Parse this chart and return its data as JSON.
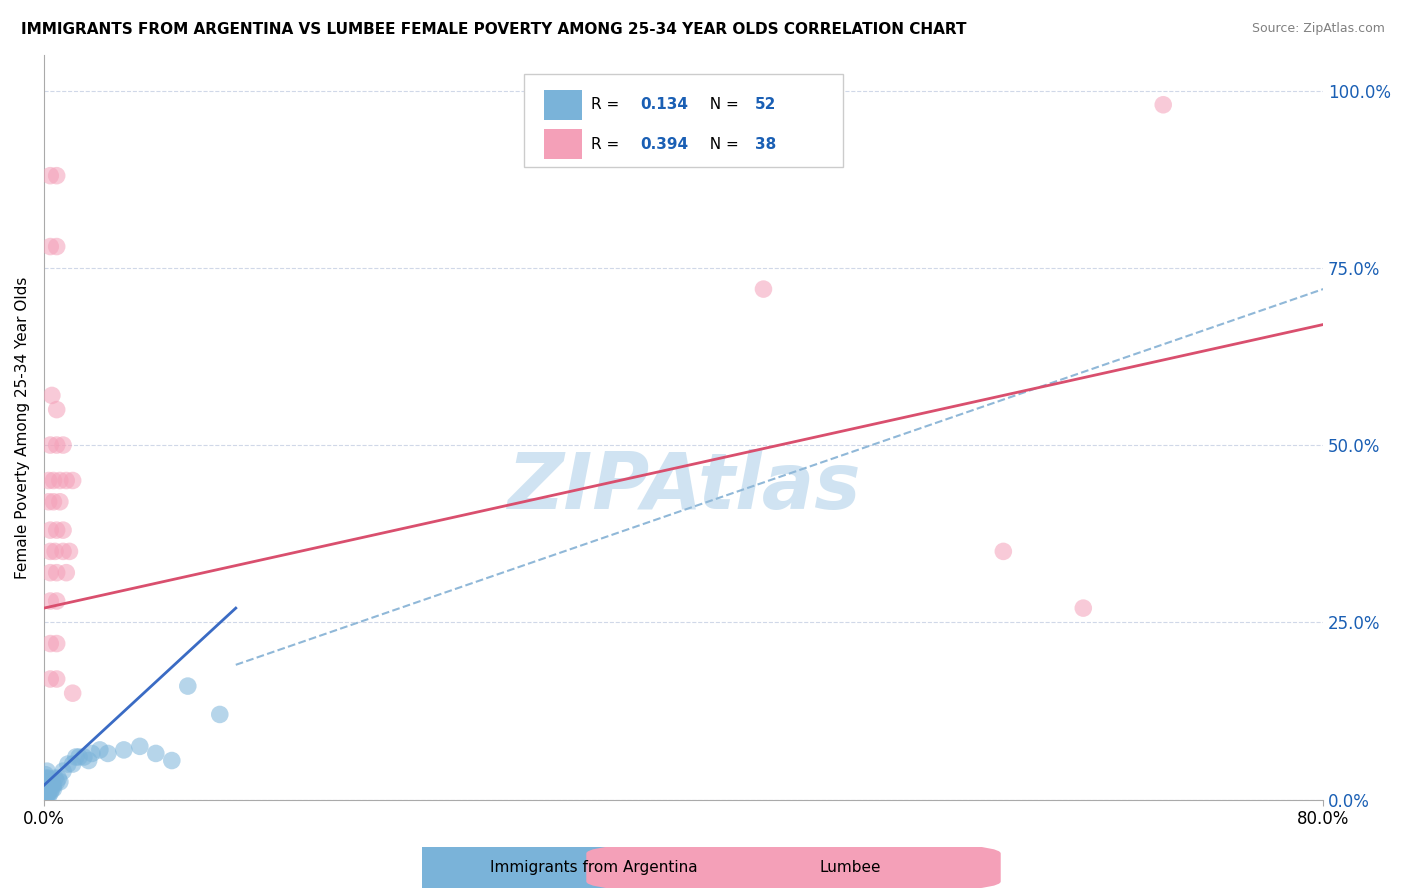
{
  "title": "IMMIGRANTS FROM ARGENTINA VS LUMBEE FEMALE POVERTY AMONG 25-34 YEAR OLDS CORRELATION CHART",
  "source": "Source: ZipAtlas.com",
  "ylabel": "Female Poverty Among 25-34 Year Olds",
  "ytick_labels": [
    "0.0%",
    "25.0%",
    "50.0%",
    "75.0%",
    "100.0%"
  ],
  "ytick_values": [
    0.0,
    0.25,
    0.5,
    0.75,
    1.0
  ],
  "xlim": [
    0.0,
    0.8
  ],
  "ylim": [
    0.0,
    1.05
  ],
  "legend_R_color": "#1a5fb4",
  "series1_R": "0.134",
  "series1_N": "52",
  "series2_R": "0.394",
  "series2_N": "38",
  "blue_color": "#7ab3d9",
  "pink_color": "#f4a0b8",
  "blue_line_color": "#3a6bc4",
  "pink_line_color": "#d94f6e",
  "dashed_line_color": "#90b8d8",
  "grid_color": "#d0d8e8",
  "watermark_color": "#c8dff0",
  "blue_scatter": [
    [
      0.001,
      0.005
    ],
    [
      0.001,
      0.008
    ],
    [
      0.001,
      0.01
    ],
    [
      0.001,
      0.012
    ],
    [
      0.001,
      0.015
    ],
    [
      0.001,
      0.018
    ],
    [
      0.001,
      0.02
    ],
    [
      0.001,
      0.025
    ],
    [
      0.001,
      0.03
    ],
    [
      0.001,
      0.035
    ],
    [
      0.002,
      0.005
    ],
    [
      0.002,
      0.008
    ],
    [
      0.002,
      0.01
    ],
    [
      0.002,
      0.015
    ],
    [
      0.002,
      0.02
    ],
    [
      0.002,
      0.025
    ],
    [
      0.002,
      0.03
    ],
    [
      0.002,
      0.04
    ],
    [
      0.003,
      0.005
    ],
    [
      0.003,
      0.01
    ],
    [
      0.003,
      0.015
    ],
    [
      0.003,
      0.02
    ],
    [
      0.003,
      0.025
    ],
    [
      0.003,
      0.03
    ],
    [
      0.004,
      0.01
    ],
    [
      0.004,
      0.02
    ],
    [
      0.004,
      0.025
    ],
    [
      0.005,
      0.015
    ],
    [
      0.005,
      0.02
    ],
    [
      0.005,
      0.025
    ],
    [
      0.006,
      0.015
    ],
    [
      0.006,
      0.02
    ],
    [
      0.007,
      0.03
    ],
    [
      0.008,
      0.025
    ],
    [
      0.009,
      0.03
    ],
    [
      0.01,
      0.025
    ],
    [
      0.012,
      0.04
    ],
    [
      0.015,
      0.05
    ],
    [
      0.018,
      0.05
    ],
    [
      0.02,
      0.06
    ],
    [
      0.022,
      0.06
    ],
    [
      0.025,
      0.06
    ],
    [
      0.028,
      0.055
    ],
    [
      0.03,
      0.065
    ],
    [
      0.035,
      0.07
    ],
    [
      0.04,
      0.065
    ],
    [
      0.05,
      0.07
    ],
    [
      0.06,
      0.075
    ],
    [
      0.07,
      0.065
    ],
    [
      0.08,
      0.055
    ],
    [
      0.09,
      0.16
    ],
    [
      0.11,
      0.12
    ]
  ],
  "pink_scatter": [
    [
      0.004,
      0.88
    ],
    [
      0.008,
      0.88
    ],
    [
      0.004,
      0.78
    ],
    [
      0.008,
      0.78
    ],
    [
      0.005,
      0.57
    ],
    [
      0.008,
      0.55
    ],
    [
      0.004,
      0.5
    ],
    [
      0.008,
      0.5
    ],
    [
      0.012,
      0.5
    ],
    [
      0.003,
      0.45
    ],
    [
      0.006,
      0.45
    ],
    [
      0.01,
      0.45
    ],
    [
      0.014,
      0.45
    ],
    [
      0.018,
      0.45
    ],
    [
      0.003,
      0.42
    ],
    [
      0.006,
      0.42
    ],
    [
      0.01,
      0.42
    ],
    [
      0.004,
      0.38
    ],
    [
      0.008,
      0.38
    ],
    [
      0.012,
      0.38
    ],
    [
      0.004,
      0.35
    ],
    [
      0.007,
      0.35
    ],
    [
      0.012,
      0.35
    ],
    [
      0.016,
      0.35
    ],
    [
      0.004,
      0.32
    ],
    [
      0.008,
      0.32
    ],
    [
      0.014,
      0.32
    ],
    [
      0.004,
      0.28
    ],
    [
      0.008,
      0.28
    ],
    [
      0.004,
      0.22
    ],
    [
      0.008,
      0.22
    ],
    [
      0.004,
      0.17
    ],
    [
      0.008,
      0.17
    ],
    [
      0.018,
      0.15
    ],
    [
      0.45,
      0.72
    ],
    [
      0.6,
      0.35
    ],
    [
      0.65,
      0.27
    ],
    [
      0.7,
      0.98
    ]
  ],
  "blue_line": [
    [
      0.0,
      0.02
    ],
    [
      0.12,
      0.27
    ]
  ],
  "pink_line": [
    [
      0.0,
      0.27
    ],
    [
      0.8,
      0.67
    ]
  ],
  "dashed_line": [
    [
      0.12,
      0.19
    ],
    [
      0.8,
      0.72
    ]
  ]
}
